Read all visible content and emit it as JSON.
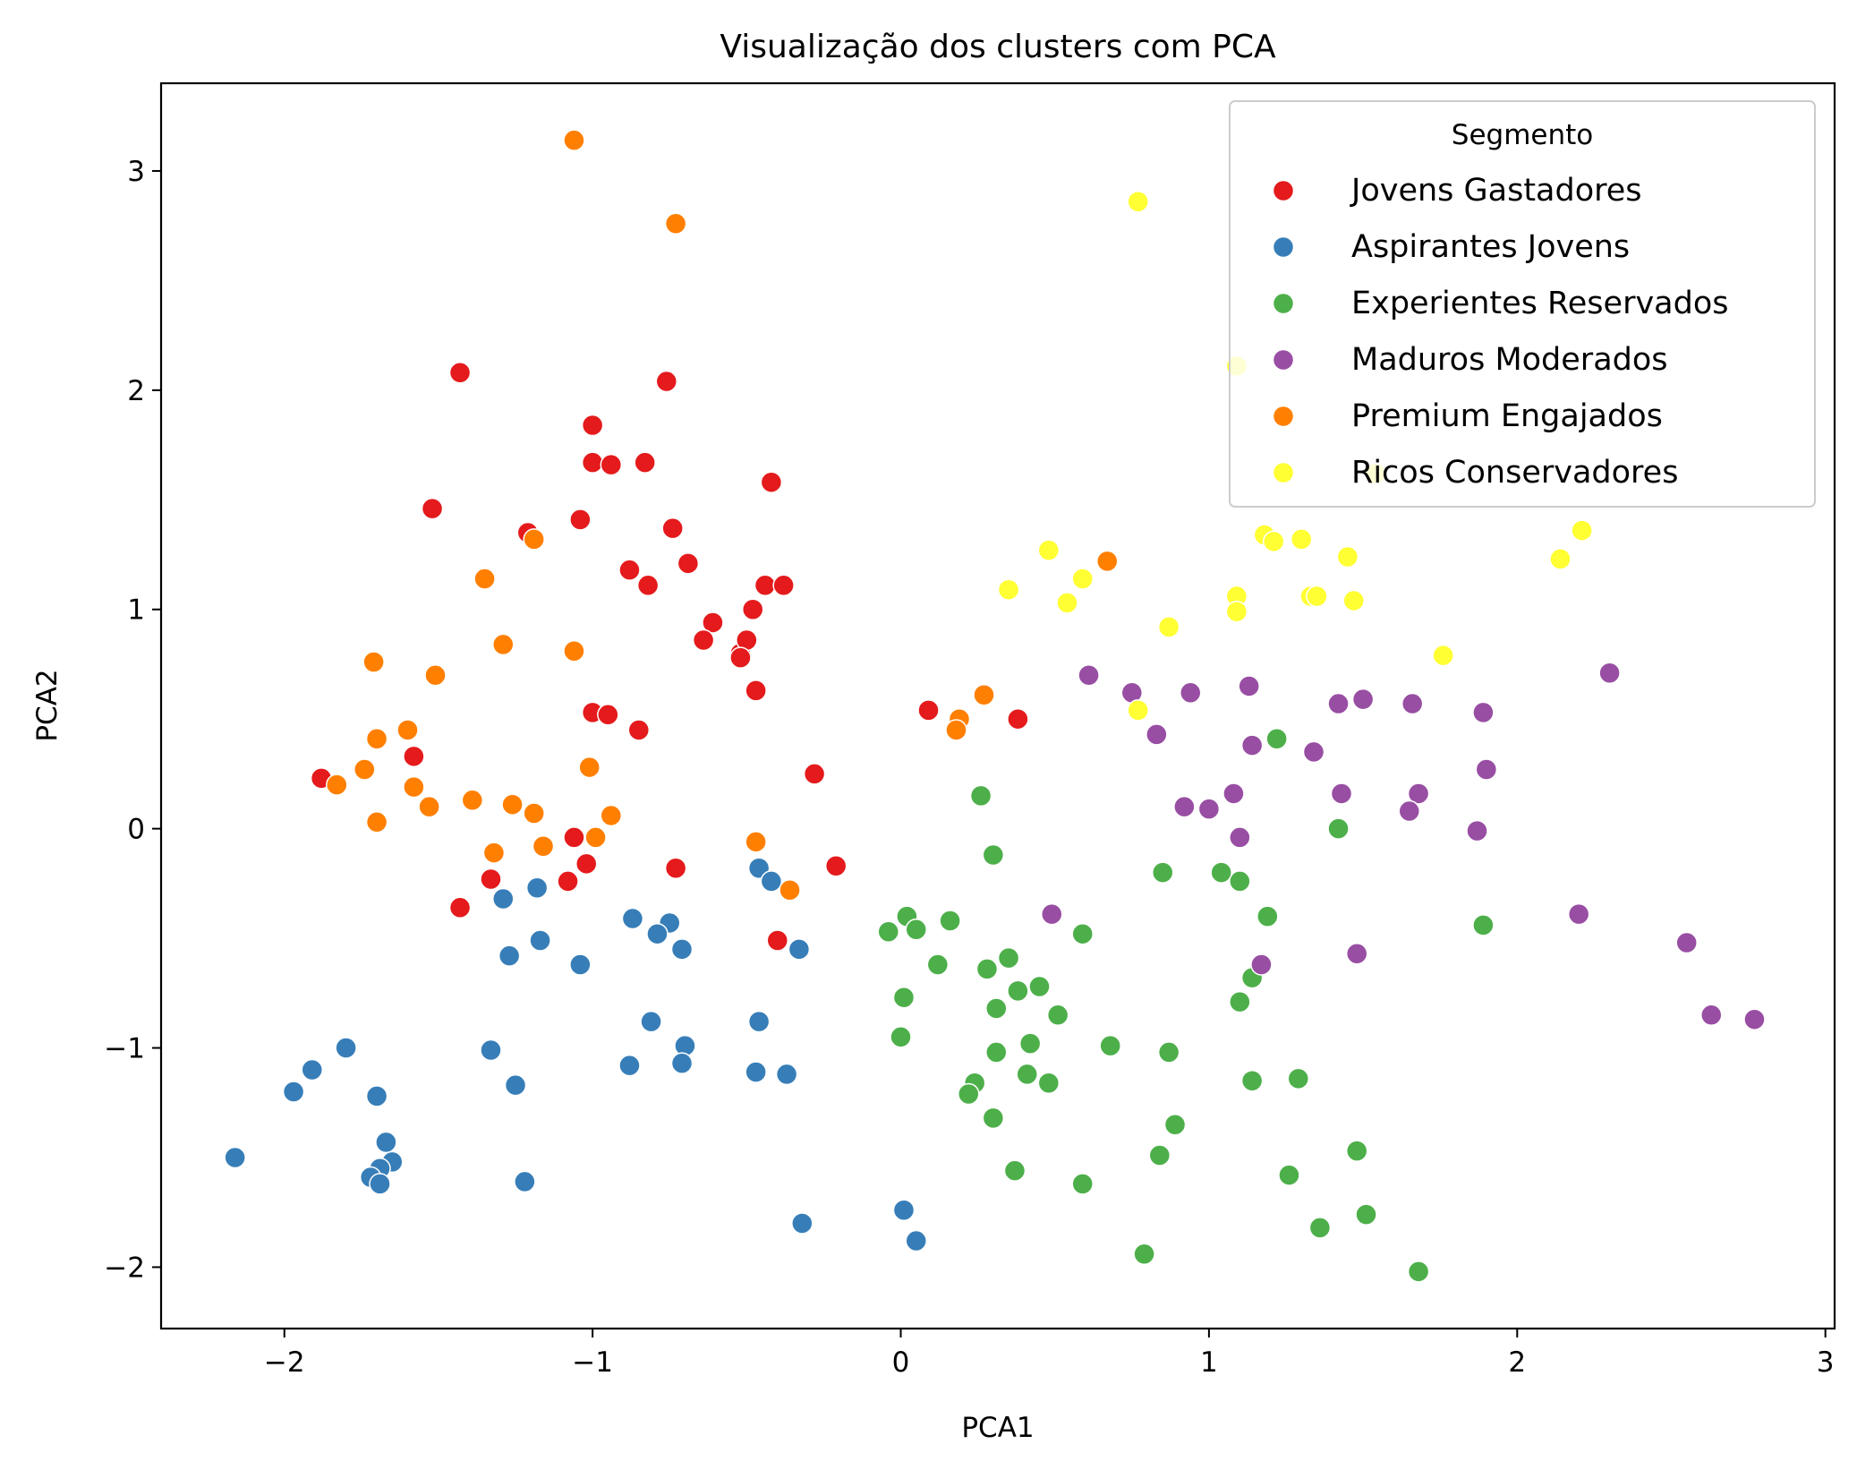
{
  "chart_data": {
    "type": "scatter",
    "title": "Visualização dos clusters com PCA",
    "xlabel": "PCA1",
    "ylabel": "PCA2",
    "xlim": [
      -2.4,
      3.03
    ],
    "ylim": [
      -2.28,
      3.4
    ],
    "xticks": [
      -2,
      -1,
      0,
      1,
      2,
      3
    ],
    "yticks": [
      -2,
      -1,
      0,
      1,
      2,
      3
    ],
    "xtick_labels": [
      "−2",
      "−1",
      "0",
      "1",
      "2",
      "3"
    ],
    "ytick_labels": [
      "−2",
      "−1",
      "0",
      "1",
      "2",
      "3"
    ],
    "grid": false,
    "legend_title": "Segmento",
    "legend_position": "top-right",
    "series": [
      {
        "name": "Jovens Gastadores",
        "color": "#e41a1c",
        "points": [
          [
            -1.43,
            2.08
          ],
          [
            -0.76,
            2.04
          ],
          [
            -1.0,
            1.84
          ],
          [
            -1.0,
            1.67
          ],
          [
            -0.94,
            1.66
          ],
          [
            -0.83,
            1.67
          ],
          [
            -0.42,
            1.58
          ],
          [
            -1.52,
            1.46
          ],
          [
            -1.21,
            1.35
          ],
          [
            -1.04,
            1.41
          ],
          [
            -0.74,
            1.37
          ],
          [
            -0.69,
            1.21
          ],
          [
            -0.88,
            1.18
          ],
          [
            -0.82,
            1.11
          ],
          [
            -0.44,
            1.11
          ],
          [
            -0.38,
            1.11
          ],
          [
            -0.48,
            1.0
          ],
          [
            -0.61,
            0.94
          ],
          [
            -0.64,
            0.86
          ],
          [
            -0.52,
            0.8
          ],
          [
            -0.5,
            0.86
          ],
          [
            -0.52,
            0.78
          ],
          [
            -0.47,
            0.63
          ],
          [
            -1.0,
            0.53
          ],
          [
            -0.95,
            0.52
          ],
          [
            -0.85,
            0.45
          ],
          [
            0.09,
            0.54
          ],
          [
            0.38,
            0.5
          ],
          [
            -1.58,
            0.33
          ],
          [
            -1.88,
            0.23
          ],
          [
            -0.28,
            0.25
          ],
          [
            -1.06,
            -0.04
          ],
          [
            -1.02,
            -0.16
          ],
          [
            -0.73,
            -0.18
          ],
          [
            -0.21,
            -0.17
          ],
          [
            -1.33,
            -0.23
          ],
          [
            -1.08,
            -0.24
          ],
          [
            -1.43,
            -0.36
          ],
          [
            -0.4,
            -0.51
          ]
        ]
      },
      {
        "name": "Aspirantes Jovens",
        "color": "#377eb8",
        "points": [
          [
            -0.46,
            -0.18
          ],
          [
            -1.29,
            -0.32
          ],
          [
            -1.18,
            -0.27
          ],
          [
            -0.42,
            -0.24
          ],
          [
            -0.87,
            -0.41
          ],
          [
            -0.75,
            -0.43
          ],
          [
            -0.79,
            -0.48
          ],
          [
            -1.17,
            -0.51
          ],
          [
            -0.71,
            -0.55
          ],
          [
            -1.27,
            -0.58
          ],
          [
            -1.04,
            -0.62
          ],
          [
            -0.33,
            -0.55
          ],
          [
            -0.81,
            -0.88
          ],
          [
            -0.46,
            -0.88
          ],
          [
            -1.8,
            -1.0
          ],
          [
            -1.33,
            -1.01
          ],
          [
            -0.7,
            -0.99
          ],
          [
            -0.71,
            -1.07
          ],
          [
            -0.88,
            -1.08
          ],
          [
            -1.91,
            -1.1
          ],
          [
            -0.47,
            -1.11
          ],
          [
            -0.37,
            -1.12
          ],
          [
            -1.97,
            -1.2
          ],
          [
            -1.25,
            -1.17
          ],
          [
            -1.7,
            -1.22
          ],
          [
            -2.16,
            -1.5
          ],
          [
            -1.67,
            -1.43
          ],
          [
            -1.65,
            -1.52
          ],
          [
            -1.69,
            -1.55
          ],
          [
            -1.72,
            -1.59
          ],
          [
            -1.69,
            -1.62
          ],
          [
            -1.22,
            -1.61
          ],
          [
            -0.32,
            -1.8
          ],
          [
            0.01,
            -1.74
          ],
          [
            0.05,
            -1.88
          ]
        ]
      },
      {
        "name": "Experientes Reservados",
        "color": "#4daf4a",
        "points": [
          [
            1.22,
            0.41
          ],
          [
            0.26,
            0.15
          ],
          [
            1.42,
            0.0
          ],
          [
            0.3,
            -0.12
          ],
          [
            0.85,
            -0.2
          ],
          [
            1.04,
            -0.2
          ],
          [
            1.1,
            -0.24
          ],
          [
            1.19,
            -0.4
          ],
          [
            0.02,
            -0.4
          ],
          [
            0.16,
            -0.42
          ],
          [
            -0.04,
            -0.47
          ],
          [
            0.05,
            -0.46
          ],
          [
            0.59,
            -0.48
          ],
          [
            1.89,
            -0.44
          ],
          [
            0.35,
            -0.59
          ],
          [
            0.12,
            -0.62
          ],
          [
            0.28,
            -0.64
          ],
          [
            1.17,
            -0.62
          ],
          [
            1.14,
            -0.68
          ],
          [
            0.45,
            -0.72
          ],
          [
            0.38,
            -0.74
          ],
          [
            0.01,
            -0.77
          ],
          [
            1.1,
            -0.79
          ],
          [
            0.31,
            -0.82
          ],
          [
            0.51,
            -0.85
          ],
          [
            0.0,
            -0.95
          ],
          [
            0.68,
            -0.99
          ],
          [
            0.42,
            -0.98
          ],
          [
            0.31,
            -1.02
          ],
          [
            0.87,
            -1.02
          ],
          [
            0.41,
            -1.12
          ],
          [
            0.24,
            -1.16
          ],
          [
            0.48,
            -1.16
          ],
          [
            1.14,
            -1.15
          ],
          [
            1.29,
            -1.14
          ],
          [
            0.22,
            -1.21
          ],
          [
            0.3,
            -1.32
          ],
          [
            0.89,
            -1.35
          ],
          [
            1.48,
            -1.47
          ],
          [
            0.84,
            -1.49
          ],
          [
            0.37,
            -1.56
          ],
          [
            1.26,
            -1.58
          ],
          [
            0.59,
            -1.62
          ],
          [
            1.51,
            -1.76
          ],
          [
            1.36,
            -1.82
          ],
          [
            0.79,
            -1.94
          ],
          [
            1.68,
            -2.02
          ]
        ]
      },
      {
        "name": "Maduros Moderados",
        "color": "#984ea3",
        "points": [
          [
            2.3,
            0.71
          ],
          [
            0.61,
            0.7
          ],
          [
            0.75,
            0.62
          ],
          [
            0.94,
            0.62
          ],
          [
            1.13,
            0.65
          ],
          [
            1.5,
            0.59
          ],
          [
            1.42,
            0.57
          ],
          [
            1.66,
            0.57
          ],
          [
            1.89,
            0.53
          ],
          [
            0.83,
            0.43
          ],
          [
            1.14,
            0.38
          ],
          [
            1.34,
            0.35
          ],
          [
            1.9,
            0.27
          ],
          [
            1.43,
            0.16
          ],
          [
            1.08,
            0.16
          ],
          [
            1.68,
            0.16
          ],
          [
            0.92,
            0.1
          ],
          [
            1.0,
            0.09
          ],
          [
            1.65,
            0.08
          ],
          [
            1.1,
            -0.04
          ],
          [
            1.87,
            -0.01
          ],
          [
            0.49,
            -0.39
          ],
          [
            2.2,
            -0.39
          ],
          [
            1.48,
            -0.57
          ],
          [
            2.55,
            -0.52
          ],
          [
            1.17,
            -0.62
          ],
          [
            2.63,
            -0.85
          ],
          [
            2.77,
            -0.87
          ]
        ]
      },
      {
        "name": "Premium Engajados",
        "color": "#ff7f00",
        "points": [
          [
            -1.06,
            3.14
          ],
          [
            -0.73,
            2.76
          ],
          [
            -1.19,
            1.32
          ],
          [
            -1.35,
            1.14
          ],
          [
            -1.29,
            0.84
          ],
          [
            -1.06,
            0.81
          ],
          [
            -1.71,
            0.76
          ],
          [
            -1.51,
            0.7
          ],
          [
            0.67,
            1.22
          ],
          [
            0.27,
            0.61
          ],
          [
            0.19,
            0.5
          ],
          [
            0.18,
            0.45
          ],
          [
            -1.6,
            0.45
          ],
          [
            -1.7,
            0.41
          ],
          [
            -1.74,
            0.27
          ],
          [
            -1.01,
            0.28
          ],
          [
            -1.83,
            0.2
          ],
          [
            -1.58,
            0.19
          ],
          [
            -1.39,
            0.13
          ],
          [
            -1.26,
            0.11
          ],
          [
            -1.53,
            0.1
          ],
          [
            -1.19,
            0.07
          ],
          [
            -0.94,
            0.06
          ],
          [
            -1.7,
            0.03
          ],
          [
            -0.99,
            -0.04
          ],
          [
            -1.16,
            -0.08
          ],
          [
            -0.47,
            -0.06
          ],
          [
            -1.32,
            -0.11
          ],
          [
            -0.36,
            -0.28
          ]
        ]
      },
      {
        "name": "Ricos Conservadores",
        "color": "#ffff33",
        "points": [
          [
            0.77,
            2.86
          ],
          [
            1.09,
            2.11
          ],
          [
            1.54,
            1.62
          ],
          [
            1.18,
            1.34
          ],
          [
            1.21,
            1.31
          ],
          [
            1.3,
            1.32
          ],
          [
            2.21,
            1.36
          ],
          [
            0.48,
            1.27
          ],
          [
            1.45,
            1.24
          ],
          [
            2.14,
            1.23
          ],
          [
            0.59,
            1.14
          ],
          [
            0.35,
            1.09
          ],
          [
            1.09,
            1.06
          ],
          [
            1.33,
            1.06
          ],
          [
            1.35,
            1.06
          ],
          [
            1.47,
            1.04
          ],
          [
            0.54,
            1.03
          ],
          [
            1.09,
            0.99
          ],
          [
            0.87,
            0.92
          ],
          [
            1.76,
            0.79
          ],
          [
            0.77,
            0.54
          ]
        ]
      }
    ]
  }
}
